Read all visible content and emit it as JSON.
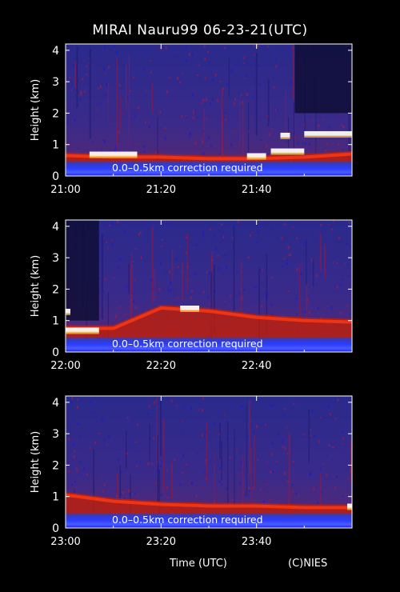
{
  "chart_data": {
    "type": "heatmap",
    "title": "MIRAI Nauru99 06-23-21(UTC)",
    "xlabel": "Time (UTC)",
    "credit": "(C)NIES",
    "ylabel": "Height (km)",
    "ylim": [
      0,
      4.2
    ],
    "yticks": [
      0,
      1,
      2,
      3,
      4
    ],
    "colors": {
      "background": "#000000",
      "clear_sky": "#2a2a9a",
      "aerosol_layer": "#c81e00",
      "cloud": "#ffffff",
      "near_surface": "#2b3cff"
    },
    "panels": [
      {
        "xlim_minutes": [
          0,
          60
        ],
        "xtick_labels": [
          "21:00",
          "21:20",
          "21:40"
        ],
        "xtick_minutes": [
          0,
          20,
          40
        ],
        "annotation": "0.0–0.5km correction required",
        "boundary_layer_top_km": [
          [
            0,
            0.65
          ],
          [
            10,
            0.6
          ],
          [
            20,
            0.6
          ],
          [
            30,
            0.55
          ],
          [
            40,
            0.55
          ],
          [
            50,
            0.6
          ],
          [
            60,
            0.7
          ]
        ],
        "cloud_events": [
          {
            "t0": 5,
            "t1": 15,
            "z": 0.7
          },
          {
            "t0": 38,
            "t1": 42,
            "z": 0.65
          },
          {
            "t0": 43,
            "t1": 50,
            "z": 0.8
          },
          {
            "t0": 50,
            "t1": 60,
            "z": 1.35
          },
          {
            "t0": 45,
            "t1": 47,
            "z": 1.3
          }
        ],
        "dark_gaps": [
          {
            "t0": 48,
            "t1": 60,
            "z0": 2.0
          }
        ]
      },
      {
        "xlim_minutes": [
          0,
          60
        ],
        "xtick_labels": [
          "22:00",
          "22:20",
          "22:40"
        ],
        "xtick_minutes": [
          0,
          20,
          40
        ],
        "annotation": "0.0–0.5km correction required",
        "boundary_layer_top_km": [
          [
            0,
            0.75
          ],
          [
            10,
            0.75
          ],
          [
            20,
            1.4
          ],
          [
            30,
            1.3
          ],
          [
            40,
            1.1
          ],
          [
            50,
            1.0
          ],
          [
            60,
            0.95
          ]
        ],
        "cloud_events": [
          {
            "t0": 0,
            "t1": 7,
            "z": 0.7
          },
          {
            "t0": 0,
            "t1": 1,
            "z": 1.3
          },
          {
            "t0": 24,
            "t1": 28,
            "z": 1.4
          }
        ],
        "dark_gaps": [
          {
            "t0": 0,
            "t1": 7,
            "z0": 1.0
          }
        ]
      },
      {
        "xlim_minutes": [
          0,
          60
        ],
        "xtick_labels": [
          "23:00",
          "23:20",
          "23:40"
        ],
        "xtick_minutes": [
          0,
          20,
          40
        ],
        "annotation": "0.0–0.5km correction required",
        "boundary_layer_top_km": [
          [
            0,
            1.05
          ],
          [
            10,
            0.85
          ],
          [
            20,
            0.75
          ],
          [
            30,
            0.7
          ],
          [
            40,
            0.7
          ],
          [
            50,
            0.65
          ],
          [
            60,
            0.65
          ]
        ],
        "cloud_events": [
          {
            "t0": 59,
            "t1": 60,
            "z": 0.7
          }
        ],
        "dark_gaps": []
      }
    ]
  }
}
